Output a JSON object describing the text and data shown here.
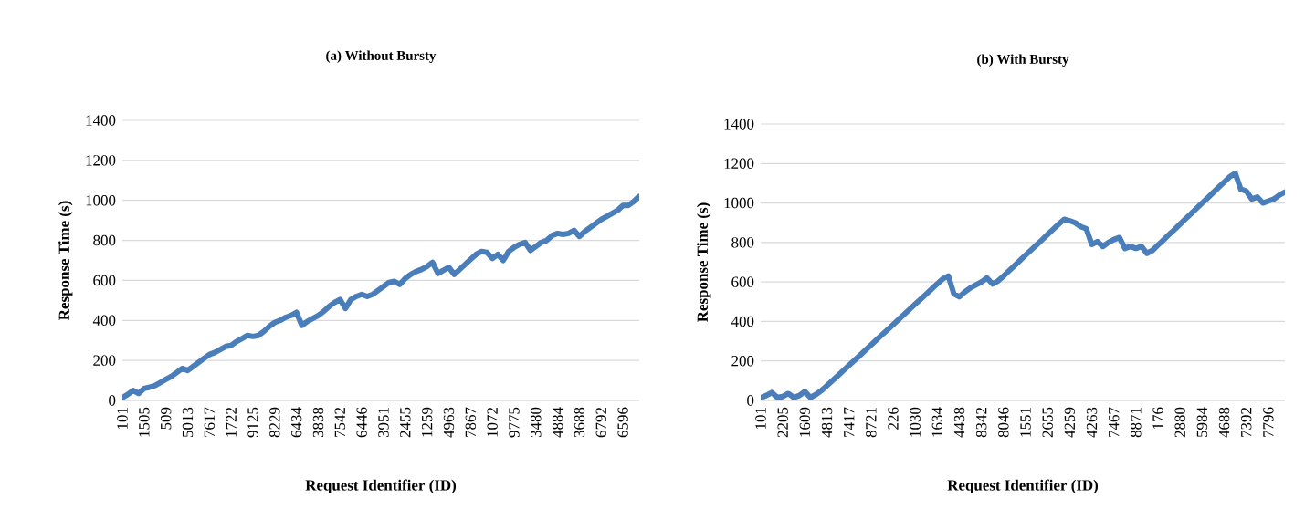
{
  "chart_data": [
    {
      "type": "line",
      "title": "(a) Without Bursty",
      "xlabel": "Request Identifier (ID)",
      "ylabel": "Response Time (s)",
      "ylim": [
        0,
        1400
      ],
      "yticks": [
        0,
        200,
        400,
        600,
        800,
        1000,
        1200,
        1400
      ],
      "grid": "y",
      "categories": [
        "101",
        null,
        null,
        null,
        "1505",
        null,
        null,
        null,
        "509",
        null,
        null,
        null,
        "5013",
        null,
        null,
        null,
        "7617",
        null,
        null,
        null,
        "1722",
        null,
        null,
        null,
        "9125",
        null,
        null,
        null,
        "8229",
        null,
        null,
        null,
        "6434",
        null,
        null,
        null,
        "3838",
        null,
        null,
        null,
        "7542",
        null,
        null,
        null,
        "6446",
        null,
        null,
        null,
        "3951",
        null,
        null,
        null,
        "2455",
        null,
        null,
        null,
        "1259",
        null,
        null,
        null,
        "4963",
        null,
        null,
        null,
        "7867",
        null,
        null,
        null,
        "1072",
        null,
        null,
        null,
        "9775",
        null,
        null,
        null,
        "3480",
        null,
        null,
        null,
        "4884",
        null,
        null,
        null,
        "3688",
        null,
        null,
        null,
        "6792",
        null,
        null,
        null,
        "6596",
        null,
        null,
        null
      ],
      "series": [
        {
          "color": "#4a7ebb",
          "values": [
            14,
            30,
            50,
            35,
            60,
            66,
            75,
            90,
            105,
            120,
            140,
            160,
            150,
            170,
            190,
            210,
            230,
            240,
            255,
            270,
            275,
            295,
            310,
            325,
            320,
            325,
            345,
            370,
            390,
            400,
            415,
            425,
            440,
            375,
            395,
            410,
            425,
            445,
            470,
            490,
            505,
            460,
            505,
            520,
            530,
            520,
            530,
            550,
            570,
            590,
            595,
            580,
            610,
            630,
            645,
            655,
            670,
            690,
            635,
            650,
            665,
            630,
            655,
            680,
            705,
            730,
            745,
            740,
            710,
            730,
            700,
            745,
            765,
            780,
            790,
            750,
            770,
            790,
            800,
            825,
            835,
            830,
            835,
            850,
            820,
            845,
            865,
            885,
            905,
            920,
            935,
            950,
            975,
            975,
            995,
            1020
          ]
        }
      ]
    },
    {
      "type": "line",
      "title": "(b) With Bursty",
      "xlabel": "Request Identifier (ID)",
      "ylabel": "Response Time (s)",
      "ylim": [
        0,
        1400
      ],
      "yticks": [
        0,
        200,
        400,
        600,
        800,
        1000,
        1200,
        1400
      ],
      "grid": "y",
      "categories": [
        "101",
        null,
        null,
        null,
        "2205",
        null,
        null,
        null,
        "1609",
        null,
        null,
        null,
        "4813",
        null,
        null,
        null,
        "7417",
        null,
        null,
        null,
        "8721",
        null,
        null,
        null,
        "226",
        null,
        null,
        null,
        "1030",
        null,
        null,
        null,
        "1634",
        null,
        null,
        null,
        "4438",
        null,
        null,
        null,
        "8342",
        null,
        null,
        null,
        "8046",
        null,
        null,
        null,
        "1551",
        null,
        null,
        null,
        "2655",
        null,
        null,
        null,
        "4259",
        null,
        null,
        null,
        "4263",
        null,
        null,
        null,
        "7467",
        null,
        null,
        null,
        "8871",
        null,
        null,
        null,
        "176",
        null,
        null,
        null,
        "2880",
        null,
        null,
        null,
        "5984",
        null,
        null,
        null,
        "4688",
        null,
        null,
        null,
        "7392",
        null,
        null,
        null,
        "7796",
        null,
        null,
        null
      ],
      "series": [
        {
          "color": "#4a7ebb",
          "values": [
            14,
            25,
            40,
            15,
            20,
            35,
            15,
            25,
            45,
            15,
            30,
            50,
            75,
            100,
            126,
            152,
            178,
            203,
            229,
            255,
            281,
            307,
            333,
            358,
            384,
            410,
            436,
            462,
            488,
            513,
            539,
            565,
            591,
            616,
            630,
            540,
            525,
            550,
            570,
            585,
            600,
            620,
            590,
            605,
            630,
            657,
            683,
            709,
            736,
            762,
            788,
            814,
            841,
            867,
            893,
            917,
            910,
            900,
            880,
            870,
            790,
            805,
            780,
            800,
            815,
            825,
            770,
            780,
            770,
            780,
            745,
            760,
            787,
            813,
            840,
            866,
            893,
            920,
            946,
            973,
            1000,
            1026,
            1053,
            1080,
            1106,
            1133,
            1150,
            1070,
            1060,
            1020,
            1030,
            1000,
            1010,
            1020,
            1040,
            1055
          ]
        }
      ]
    }
  ]
}
